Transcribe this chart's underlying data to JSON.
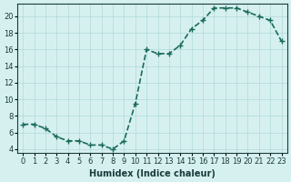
{
  "x": [
    0,
    1,
    2,
    3,
    4,
    5,
    6,
    7,
    8,
    9,
    10,
    11,
    12,
    13,
    14,
    15,
    16,
    17,
    18,
    19,
    20,
    21,
    22,
    23
  ],
  "y": [
    7.0,
    7.0,
    6.5,
    5.5,
    5.0,
    5.0,
    4.5,
    4.5,
    4.0,
    5.0,
    9.5,
    16.0,
    15.5,
    15.5,
    16.5,
    18.5,
    19.5,
    21.0,
    21.0,
    21.0,
    20.5,
    20.0,
    19.5,
    17.0
  ],
  "line_color": "#1a6b5a",
  "marker": "+",
  "marker_size": 4,
  "bg_color": "#d6f0f0",
  "grid_color": "#b0d8d8",
  "xlabel": "Humidex (Indice chaleur)",
  "xlim": [
    -0.5,
    23.5
  ],
  "ylim": [
    3.5,
    21.5
  ],
  "yticks": [
    4,
    6,
    8,
    10,
    12,
    14,
    16,
    18,
    20
  ],
  "xtick_labels": [
    "0",
    "1",
    "2",
    "3",
    "4",
    "5",
    "6",
    "7",
    "8",
    "9",
    "10",
    "11",
    "12",
    "13",
    "14",
    "15",
    "16",
    "17",
    "18",
    "19",
    "20",
    "21",
    "22",
    "23"
  ],
  "xlabel_fontsize": 7,
  "tick_fontsize": 6.0,
  "tick_color": "#1a3a3a",
  "linewidth": 1.2
}
